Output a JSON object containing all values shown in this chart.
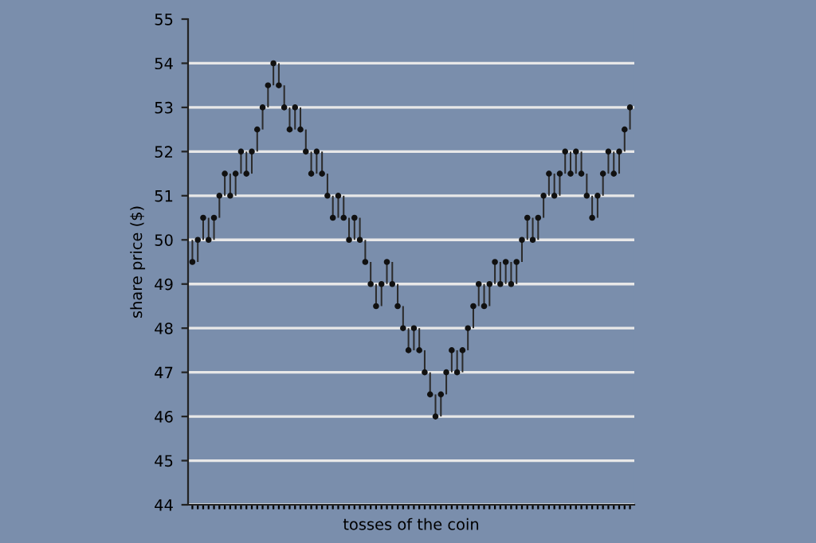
{
  "chart_data": {
    "type": "bar",
    "xlabel": "tosses of the coin",
    "ylabel": "share price ($)",
    "categories": [
      null,
      null,
      null,
      null,
      null,
      null,
      null,
      null,
      null,
      null,
      null,
      null,
      null,
      null,
      null,
      null,
      null,
      null,
      null,
      null,
      null,
      null,
      null,
      null,
      null,
      null,
      null,
      null,
      null,
      null,
      null,
      null,
      null,
      null,
      null,
      null,
      null,
      null,
      null,
      null,
      null,
      null,
      null,
      null,
      null,
      null,
      null,
      null,
      null,
      null,
      null,
      null,
      null,
      null,
      null,
      null,
      null,
      null,
      null,
      null,
      null,
      null,
      null,
      null,
      null,
      null,
      null,
      null,
      null,
      null,
      null,
      null,
      null,
      null,
      null,
      null,
      null,
      null,
      null,
      null,
      null,
      null
    ],
    "series": [
      {
        "color": "#2b2b2b",
        "base": [
          50,
          49.5,
          50,
          50.5,
          50,
          50.5,
          51,
          51.5,
          51,
          51.5,
          52,
          51.5,
          52,
          52.5,
          53,
          53.5,
          54,
          53.5,
          53,
          52.5,
          53,
          52.5,
          52,
          51.5,
          52,
          51.5,
          51,
          50.5,
          51,
          50.5,
          50,
          50.5,
          50,
          49.5,
          49,
          48.5,
          49,
          49.5,
          49,
          48.5,
          48,
          47.5,
          48,
          47.5,
          47,
          46.5,
          46,
          46.5,
          47,
          47.5,
          47,
          47.5,
          48,
          48.5,
          49,
          48.5,
          49,
          49.5,
          49,
          49.5,
          49,
          49.5,
          50,
          50.5,
          50,
          50.5,
          51,
          51.5,
          51,
          51.5,
          52,
          51.5,
          52,
          51.5,
          51,
          50.5,
          51,
          51.5,
          52,
          51.5,
          52,
          52.5
        ],
        "values": [
          -0.5,
          0.5,
          0.5,
          -0.5,
          0.5,
          0.5,
          0.5,
          -0.5,
          0.5,
          0.5,
          -0.5,
          0.5,
          0.5,
          0.5,
          0.5,
          0.5,
          -0.5,
          -0.5,
          -0.5,
          0.5,
          -0.5,
          -0.5,
          -0.5,
          0.5,
          -0.5,
          -0.5,
          -0.5,
          0.5,
          -0.5,
          -0.5,
          0.5,
          -0.5,
          -0.5,
          -0.5,
          -0.5,
          0.5,
          0.5,
          -0.5,
          -0.5,
          -0.5,
          -0.5,
          0.5,
          -0.5,
          -0.5,
          -0.5,
          -0.5,
          0.5,
          0.5,
          0.5,
          -0.5,
          0.5,
          0.5,
          0.5,
          0.5,
          -0.5,
          0.5,
          0.5,
          -0.5,
          0.5,
          -0.5,
          0.5,
          0.5,
          0.5,
          -0.5,
          0.5,
          0.5,
          0.5,
          -0.5,
          0.5,
          0.5,
          -0.5,
          0.5,
          -0.5,
          -0.5,
          -0.5,
          0.5,
          0.5,
          0.5,
          -0.5,
          0.5,
          0.5,
          0.5
        ]
      },
      {
        "type": "scatter",
        "color": "#111111",
        "marker": "circle",
        "values": [
          49.5,
          50,
          50.5,
          50,
          50.5,
          51,
          51.5,
          51,
          51.5,
          52,
          51.5,
          52,
          52.5,
          53,
          53.5,
          54,
          53.5,
          53,
          52.5,
          53,
          52.5,
          52,
          51.5,
          52,
          51.5,
          51,
          50.5,
          51,
          50.5,
          50,
          50.5,
          50,
          49.5,
          49,
          48.5,
          49,
          49.5,
          49,
          48.5,
          48,
          47.5,
          48,
          47.5,
          47,
          46.5,
          46,
          46.5,
          47,
          47.5,
          47,
          47.5,
          48,
          48.5,
          49,
          48.5,
          49,
          49.5,
          49,
          49.5,
          49,
          49.5,
          50,
          50.5,
          50,
          50.5,
          51,
          51.5,
          51,
          51.5,
          52,
          51.5,
          52,
          51.5,
          51,
          50.5,
          51,
          51.5,
          52,
          51.5,
          52,
          52.5,
          53
        ]
      }
    ],
    "ylim": [
      44,
      55
    ],
    "yticks": [
      44,
      45,
      46,
      47,
      48,
      49,
      50,
      51,
      52,
      53,
      54,
      55
    ],
    "grid": "y",
    "tick_labels": "y"
  }
}
